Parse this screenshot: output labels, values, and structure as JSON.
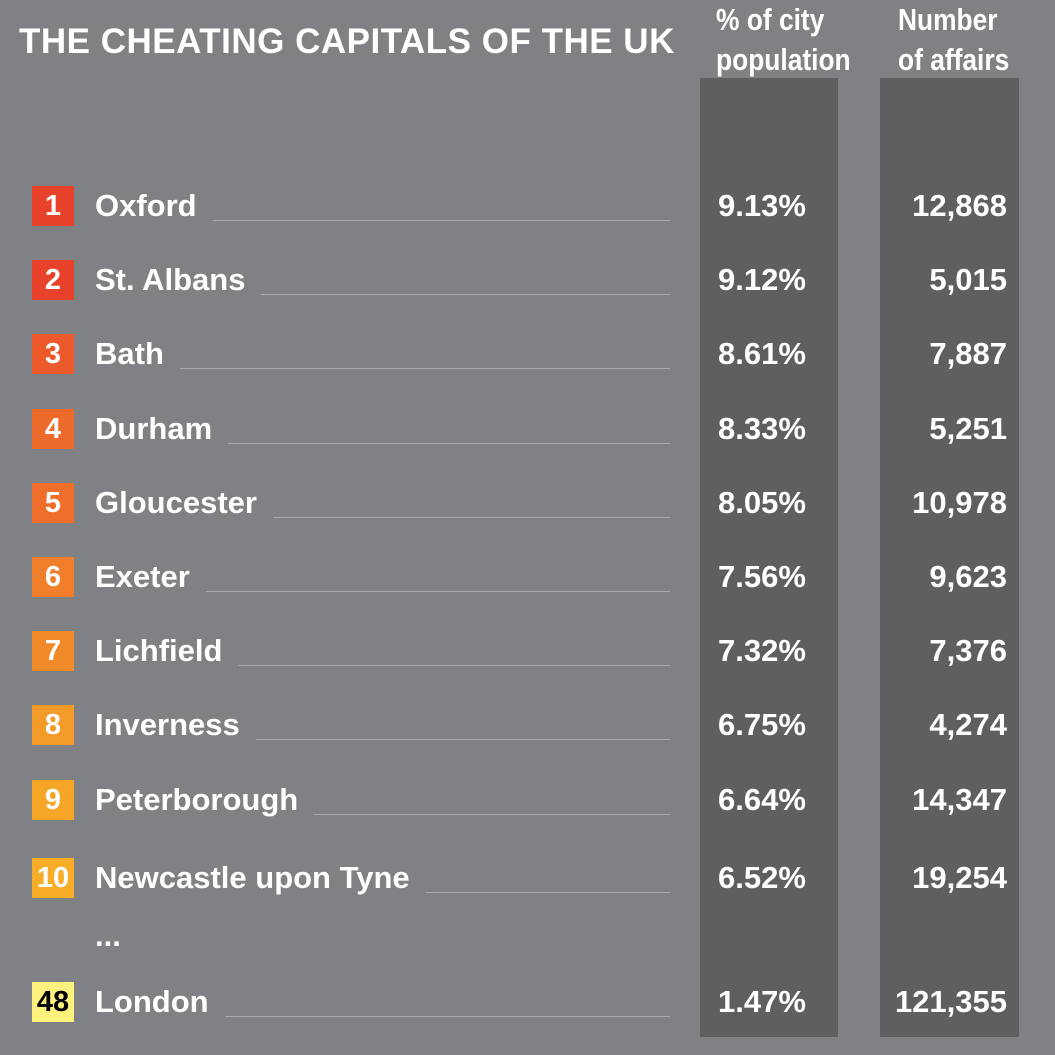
{
  "chart_data": {
    "type": "table",
    "title": "THE CHEATING CAPITALS OF THE UK",
    "columns": [
      "% of city population",
      "Number of affairs"
    ],
    "rows": [
      {
        "rank": "1",
        "city": "Oxford",
        "pct": "9.13%",
        "affairs": "12,868",
        "color": "#e8422a"
      },
      {
        "rank": "2",
        "city": "St. Albans",
        "pct": "9.12%",
        "affairs": "5,015",
        "color": "#e8422a"
      },
      {
        "rank": "3",
        "city": "Bath",
        "pct": "8.61%",
        "affairs": "7,887",
        "color": "#ec5a2b"
      },
      {
        "rank": "4",
        "city": "Durham",
        "pct": "8.33%",
        "affairs": "5,251",
        "color": "#ee6a2b"
      },
      {
        "rank": "5",
        "city": "Gloucester",
        "pct": "8.05%",
        "affairs": "10,978",
        "color": "#ef6f2a"
      },
      {
        "rank": "6",
        "city": "Exeter",
        "pct": "7.56%",
        "affairs": "9,623",
        "color": "#f07e2a"
      },
      {
        "rank": "7",
        "city": "Lichfield",
        "pct": "7.32%",
        "affairs": "7,376",
        "color": "#f18a29"
      },
      {
        "rank": "8",
        "city": "Inverness",
        "pct": "6.75%",
        "affairs": "4,274",
        "color": "#f39a28"
      },
      {
        "rank": "9",
        "city": "Peterborough",
        "pct": "6.64%",
        "affairs": "14,347",
        "color": "#f5a627"
      },
      {
        "rank": "10",
        "city": "Newcastle upon Tyne",
        "pct": "6.52%",
        "affairs": "19,254",
        "color": "#f7ad27"
      }
    ],
    "ellipsis": "...",
    "last_row": {
      "rank": "48",
      "city": "London",
      "pct": "1.47%",
      "affairs": "121,355",
      "color": "#fdf17d"
    }
  }
}
